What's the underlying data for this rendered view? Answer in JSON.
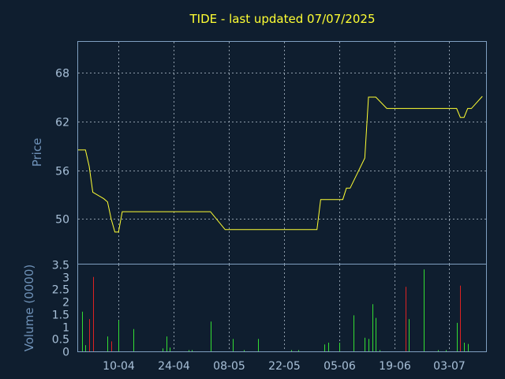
{
  "chart_data": {
    "type": "line",
    "title": "TIDE - last updated 07/07/2025",
    "price_panel": {
      "ylabel": "Price",
      "ylim": [
        44.5,
        71.8
      ],
      "yticks": [
        50,
        56,
        62,
        68
      ],
      "ytick_labels": [
        "50",
        "56",
        "62",
        "68"
      ],
      "grid": true,
      "line_color": "#ffff33"
    },
    "volume_panel": {
      "ylabel": "Volume (0000)",
      "ylim": [
        0,
        3.5
      ],
      "yticks": [
        0,
        0.5,
        1,
        1.5,
        2,
        2.5,
        3,
        3.5
      ],
      "ytick_labels": [
        "0",
        "0.5",
        "1",
        "1.5",
        "2",
        "2.5",
        "3",
        "3.5"
      ],
      "up_color": "#33dd33",
      "down_color": "#dd2222"
    },
    "xlim": [
      0,
      111
    ],
    "xticks": [
      11,
      26,
      41,
      56,
      71,
      86,
      101
    ],
    "xtick_labels": [
      "10-04",
      "24-04",
      "08-05",
      "22-05",
      "05-06",
      "19-06",
      "03-07"
    ],
    "price": [
      [
        0,
        58.5
      ],
      [
        2,
        58.5
      ],
      [
        3,
        56.5
      ],
      [
        4,
        53.3
      ],
      [
        7,
        52.5
      ],
      [
        8,
        52.1
      ],
      [
        9,
        50.0
      ],
      [
        10,
        48.4
      ],
      [
        11,
        48.4
      ],
      [
        12,
        50.9
      ],
      [
        35,
        50.9
      ],
      [
        36,
        50.9
      ],
      [
        40,
        48.7
      ],
      [
        64,
        48.7
      ],
      [
        65,
        48.7
      ],
      [
        66,
        52.4
      ],
      [
        72,
        52.4
      ],
      [
        73,
        53.8
      ],
      [
        74,
        53.8
      ],
      [
        78,
        57.5
      ],
      [
        79,
        65.0
      ],
      [
        81,
        65.0
      ],
      [
        84,
        63.6
      ],
      [
        103,
        63.6
      ],
      [
        104,
        62.5
      ],
      [
        105,
        62.5
      ],
      [
        106,
        63.6
      ],
      [
        107,
        63.6
      ],
      [
        110,
        65.1
      ]
    ],
    "volume": [
      {
        "x": 1,
        "v": 1.6,
        "dir": "up"
      },
      {
        "x": 2,
        "v": 0.25,
        "dir": "up"
      },
      {
        "x": 3,
        "v": 1.3,
        "dir": "down"
      },
      {
        "x": 4,
        "v": 3.0,
        "dir": "down"
      },
      {
        "x": 8,
        "v": 0.6,
        "dir": "up"
      },
      {
        "x": 9,
        "v": 0.4,
        "dir": "down"
      },
      {
        "x": 11,
        "v": 1.25,
        "dir": "up"
      },
      {
        "x": 15,
        "v": 0.9,
        "dir": "up"
      },
      {
        "x": 23,
        "v": 0.12,
        "dir": "up"
      },
      {
        "x": 24,
        "v": 0.6,
        "dir": "up"
      },
      {
        "x": 25,
        "v": 0.15,
        "dir": "up"
      },
      {
        "x": 30,
        "v": 0.05,
        "dir": "up"
      },
      {
        "x": 31,
        "v": 0.05,
        "dir": "up"
      },
      {
        "x": 36,
        "v": 1.2,
        "dir": "up"
      },
      {
        "x": 42,
        "v": 0.5,
        "dir": "up"
      },
      {
        "x": 45,
        "v": 0.05,
        "dir": "up"
      },
      {
        "x": 49,
        "v": 0.5,
        "dir": "up"
      },
      {
        "x": 58,
        "v": 0.05,
        "dir": "up"
      },
      {
        "x": 60,
        "v": 0.05,
        "dir": "up"
      },
      {
        "x": 67,
        "v": 0.28,
        "dir": "up"
      },
      {
        "x": 68,
        "v": 0.35,
        "dir": "up"
      },
      {
        "x": 71,
        "v": 0.35,
        "dir": "up"
      },
      {
        "x": 75,
        "v": 1.45,
        "dir": "up"
      },
      {
        "x": 78,
        "v": 0.55,
        "dir": "up"
      },
      {
        "x": 79,
        "v": 0.5,
        "dir": "up"
      },
      {
        "x": 80,
        "v": 1.9,
        "dir": "up"
      },
      {
        "x": 81,
        "v": 1.35,
        "dir": "up"
      },
      {
        "x": 82,
        "v": 0.05,
        "dir": "up"
      },
      {
        "x": 89,
        "v": 2.6,
        "dir": "down"
      },
      {
        "x": 90,
        "v": 1.3,
        "dir": "up"
      },
      {
        "x": 94,
        "v": 3.3,
        "dir": "up"
      },
      {
        "x": 98,
        "v": 0.05,
        "dir": "up"
      },
      {
        "x": 100,
        "v": 0.05,
        "dir": "up"
      },
      {
        "x": 103,
        "v": 1.15,
        "dir": "up"
      },
      {
        "x": 104,
        "v": 2.65,
        "dir": "down"
      },
      {
        "x": 105,
        "v": 0.35,
        "dir": "up"
      },
      {
        "x": 106,
        "v": 0.3,
        "dir": "up"
      }
    ]
  }
}
